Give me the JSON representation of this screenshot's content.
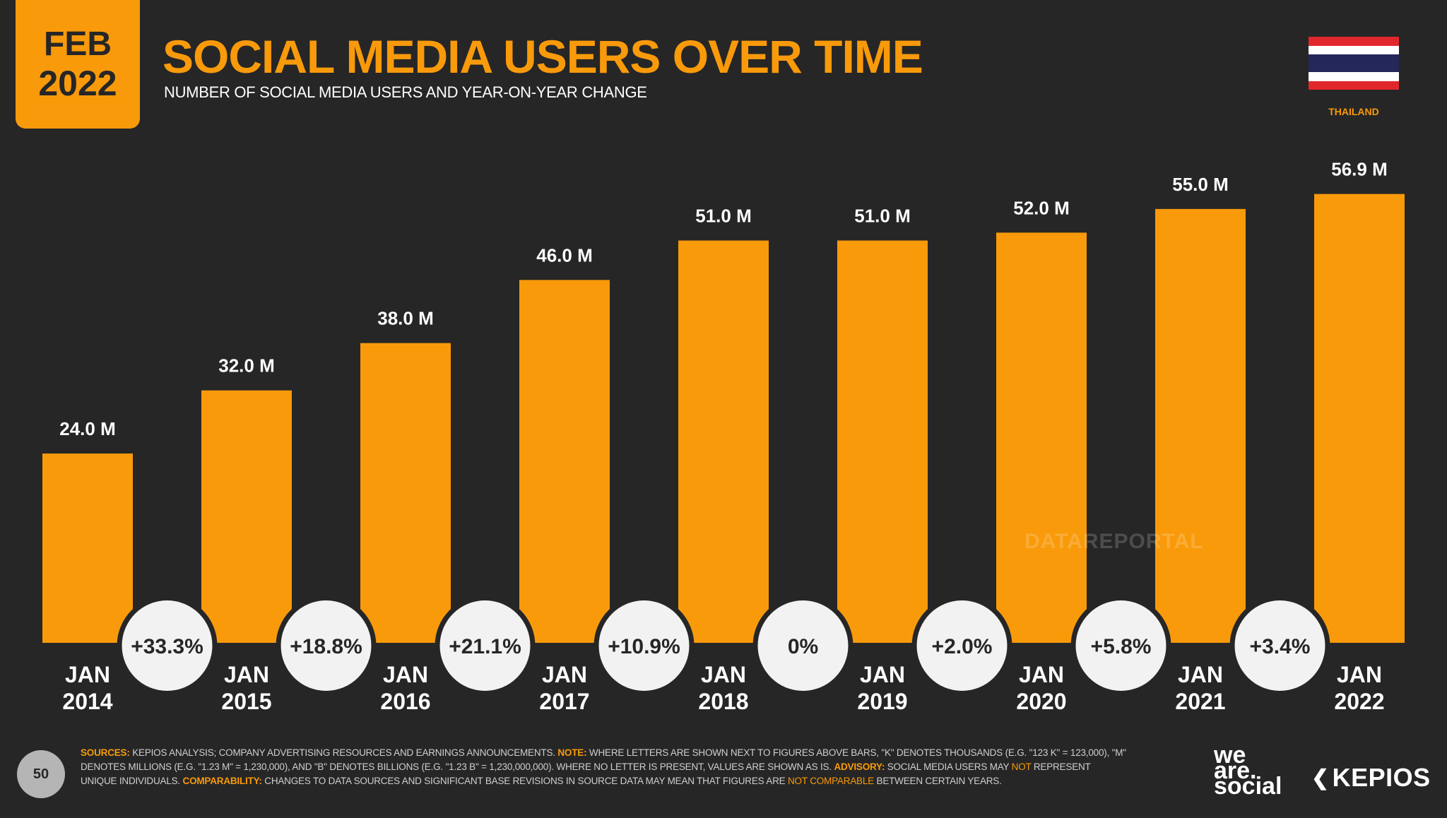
{
  "header": {
    "badge_month": "FEB",
    "badge_year": "2022",
    "title": "SOCIAL MEDIA USERS OVER TIME",
    "subtitle": "NUMBER OF SOCIAL MEDIA USERS AND YEAR-ON-YEAR CHANGE",
    "country": "THAILAND"
  },
  "colors": {
    "background": "#262626",
    "accent": "#f99a0b",
    "circle": "#f2f2f2",
    "flag_red": "#e0272c",
    "flag_white": "#ffffff",
    "flag_blue": "#24275a"
  },
  "chart_data": {
    "type": "bar",
    "categories": [
      [
        "JAN",
        "2014"
      ],
      [
        "JAN",
        "2015"
      ],
      [
        "JAN",
        "2016"
      ],
      [
        "JAN",
        "2017"
      ],
      [
        "JAN",
        "2018"
      ],
      [
        "JAN",
        "2019"
      ],
      [
        "JAN",
        "2020"
      ],
      [
        "JAN",
        "2021"
      ],
      [
        "JAN",
        "2022"
      ]
    ],
    "values": [
      24.0,
      32.0,
      38.0,
      46.0,
      51.0,
      51.0,
      52.0,
      55.0,
      56.9
    ],
    "value_labels": [
      "24.0 M",
      "32.0 M",
      "38.0 M",
      "46.0 M",
      "51.0 M",
      "51.0 M",
      "52.0 M",
      "55.0 M",
      "56.9 M"
    ],
    "changes": [
      "+33.3%",
      "+18.8%",
      "+21.1%",
      "+10.9%",
      "0%",
      "+2.0%",
      "+5.8%",
      "+3.4%"
    ],
    "title": "SOCIAL MEDIA USERS OVER TIME",
    "xlabel": "",
    "ylabel": "",
    "ylim": [
      0,
      60
    ],
    "grid": false
  },
  "watermark": "DATAREPORTAL",
  "footer": {
    "page_number": "50",
    "sources_label": "SOURCES:",
    "sources_text": " KEPIOS ANALYSIS; COMPANY ADVERTISING RESOURCES AND EARNINGS ANNOUNCEMENTS. ",
    "note_label": "NOTE:",
    "note_text": " WHERE LETTERS ARE SHOWN NEXT TO FIGURES ABOVE BARS, \"K\" DENOTES THOUSANDS (E.G. \"123 K\" = 123,000), \"M\" DENOTES MILLIONS (E.G. \"1.23 M\" = 1,230,000), AND \"B\" DENOTES BILLIONS (E.G. \"1.23 B\" = 1,230,000,000). WHERE NO LETTER IS PRESENT, VALUES ARE SHOWN AS IS. ",
    "advisory_label": "ADVISORY:",
    "advisory_text_1": " SOCIAL MEDIA USERS MAY ",
    "advisory_not": "NOT",
    "advisory_text_2": " REPRESENT UNIQUE INDIVIDUALS. ",
    "comparability_label": "COMPARABILITY:",
    "comparability_text": " CHANGES TO DATA SOURCES AND SIGNIFICANT BASE REVISIONS IN SOURCE DATA MAY MEAN THAT FIGURES ARE ",
    "comparability_not": "NOT COMPARABLE",
    "comparability_end": " BETWEEN CERTAIN YEARS.",
    "brand_1_line1": "we",
    "brand_1_line2": "are.",
    "brand_1_line3": "social",
    "brand_2": "KEPIOS"
  }
}
